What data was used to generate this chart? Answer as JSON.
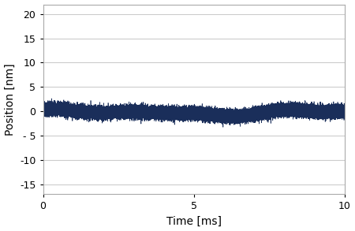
{
  "xlim": [
    0,
    10
  ],
  "ylim": [
    -17,
    22
  ],
  "yticks": [
    -15,
    -10,
    -5,
    0,
    5,
    10,
    15,
    20
  ],
  "ytick_labels": [
    "-15",
    "-10",
    "- 5",
    "0",
    "5",
    "10",
    "15",
    "20"
  ],
  "xticks": [
    0,
    5,
    10
  ],
  "xlabel": "Time [ms]",
  "ylabel": "Position [nm]",
  "line_color": "#1a2e5a",
  "line_width": 0.5,
  "n_points": 100000,
  "noise_amplitude": 0.55,
  "noise_mean": -0.3,
  "background_color": "#ffffff",
  "grid_color": "#cccccc",
  "grid_linewidth": 0.8,
  "axis_label_fontsize": 10,
  "tick_fontsize": 9
}
